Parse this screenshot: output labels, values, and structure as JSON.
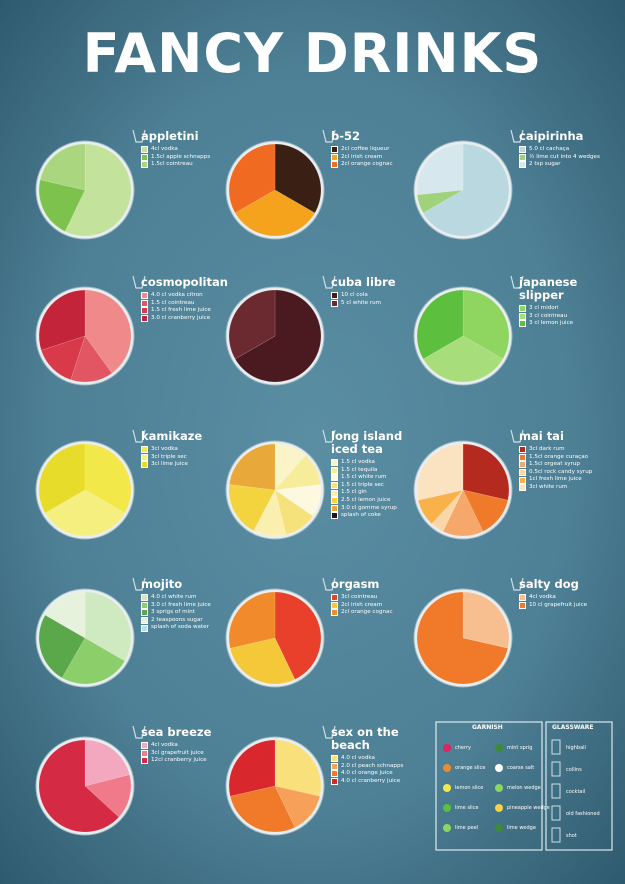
{
  "title": "FANCY DRINKS",
  "drinks": [
    {
      "name": "appletini",
      "ingredients": [
        {
          "text": "4cl vodka",
          "amount": 4,
          "color": "#c3e29c"
        },
        {
          "text": "1.5cl apple schnapps",
          "amount": 1.5,
          "color": "#7cc24d"
        },
        {
          "text": "1.5cl cointreau",
          "amount": 1.5,
          "color": "#a9d67e"
        }
      ]
    },
    {
      "name": "b-52",
      "ingredients": [
        {
          "text": "2cl coffee liqueur",
          "amount": 2,
          "color": "#3a1f14"
        },
        {
          "text": "2cl irish cream",
          "amount": 2,
          "color": "#f5a21c"
        },
        {
          "text": "2cl orange cognac",
          "amount": 2,
          "color": "#f06a22"
        }
      ]
    },
    {
      "name": "caipirinha",
      "ingredients": [
        {
          "text": "5.0 cl cachaça",
          "amount": 5,
          "color": "#b9d8e0"
        },
        {
          "text": "½ lime cut into 4 wedges",
          "amount": 0.5,
          "color": "#9fd27a"
        },
        {
          "text": "2 tsp sugar",
          "amount": 2,
          "color": "#d6e8ee"
        }
      ]
    },
    {
      "name": "cosmopolitan",
      "ingredients": [
        {
          "text": "4.0 cl vodka citron",
          "amount": 4,
          "color": "#f08a8a"
        },
        {
          "text": "1.5 cl cointreau",
          "amount": 1.5,
          "color": "#e25563"
        },
        {
          "text": "1.5 cl fresh lime juice",
          "amount": 1.5,
          "color": "#d93a4a"
        },
        {
          "text": "3.0 cl cranberry juice",
          "amount": 3,
          "color": "#c4243a"
        }
      ]
    },
    {
      "name": "cuba libre",
      "ingredients": [
        {
          "text": "10 cl cola",
          "amount": 10,
          "color": "#4a1a20"
        },
        {
          "text": "5 cl white rum",
          "amount": 5,
          "color": "#6a2a30"
        }
      ]
    },
    {
      "name": "japanese slipper",
      "ingredients": [
        {
          "text": "3 cl midori",
          "amount": 3,
          "color": "#8fd660"
        },
        {
          "text": "3 cl cointreau",
          "amount": 3,
          "color": "#a7dd7a"
        },
        {
          "text": "3 cl lemon juice",
          "amount": 3,
          "color": "#5cbf3d"
        }
      ]
    },
    {
      "name": "kamikaze",
      "ingredients": [
        {
          "text": "3cl vodka",
          "amount": 3,
          "color": "#f2e84a"
        },
        {
          "text": "3cl triple sec",
          "amount": 3,
          "color": "#f5ef80"
        },
        {
          "text": "3cl lime juice",
          "amount": 3,
          "color": "#e8dc2a"
        }
      ]
    },
    {
      "name": "long island iced tea",
      "ingredients": [
        {
          "text": "1.5 cl vodka",
          "amount": 1.5,
          "color": "#fbf4c8"
        },
        {
          "text": "1.5 cl tequila",
          "amount": 1.5,
          "color": "#f7ec9a"
        },
        {
          "text": "1.5 cl white rum",
          "amount": 1.5,
          "color": "#fdf8e0"
        },
        {
          "text": "1.5 cl triple sec",
          "amount": 1.5,
          "color": "#f6e27a"
        },
        {
          "text": "1.5 cl gin",
          "amount": 1.5,
          "color": "#fbefb0"
        },
        {
          "text": "2.5 cl lemon juice",
          "amount": 2.5,
          "color": "#f3d43e"
        },
        {
          "text": "3.0 cl gomme syrup",
          "amount": 3,
          "color": "#e8a83a"
        },
        {
          "text": "splash of coke",
          "color": "#2a1410"
        }
      ]
    },
    {
      "name": "mai tai",
      "ingredients": [
        {
          "text": "3cl dark rum",
          "amount": 3,
          "color": "#b52a1e"
        },
        {
          "text": "1.5cl orange curaçao",
          "amount": 1.5,
          "color": "#ef7a2a"
        },
        {
          "text": "1.5cl orgeat syrup",
          "amount": 1.5,
          "color": "#f6a86a"
        },
        {
          "text": "0.5cl rock candy syrup",
          "amount": 0.5,
          "color": "#fbd7a8"
        },
        {
          "text": "1cl fresh lime juice",
          "amount": 1,
          "color": "#f9b24a"
        },
        {
          "text": "3cl white rum",
          "amount": 3,
          "color": "#fbe2c0"
        }
      ]
    },
    {
      "name": "mojito",
      "ingredients": [
        {
          "text": "4.0 cl white rum",
          "amount": 4,
          "color": "#cfe9c0"
        },
        {
          "text": "3.0 cl fresh lime juice",
          "amount": 3,
          "color": "#8ccf6a"
        },
        {
          "text": "3 sprigs of mint",
          "amount": 3,
          "color": "#5aa84a"
        },
        {
          "text": "2 teaspoons sugar",
          "amount": 2,
          "color": "#e6f2dc"
        },
        {
          "text": "splash of soda water",
          "color": "#b9dde6"
        }
      ]
    },
    {
      "name": "orgasm",
      "ingredients": [
        {
          "text": "3cl cointreau",
          "amount": 3,
          "color": "#e8402a"
        },
        {
          "text": "2cl irish cream",
          "amount": 2,
          "color": "#f5c83a"
        },
        {
          "text": "2cl orange cognac",
          "amount": 2,
          "color": "#f08a2a"
        }
      ]
    },
    {
      "name": "salty dog",
      "ingredients": [
        {
          "text": "4cl vodka",
          "amount": 4,
          "color": "#f7be90"
        },
        {
          "text": "10 cl grapefruit juice",
          "amount": 10,
          "color": "#f07a2a"
        }
      ]
    },
    {
      "name": "sea breeze",
      "ingredients": [
        {
          "text": "4cl vodka",
          "amount": 4,
          "color": "#f4a8c0"
        },
        {
          "text": "3cl grapefruit juice",
          "amount": 3,
          "color": "#f07a8a"
        },
        {
          "text": "12cl cranberry juice",
          "amount": 12,
          "color": "#d42a44"
        }
      ]
    },
    {
      "name": "sex on the beach",
      "ingredients": [
        {
          "text": "4.0 cl vodka",
          "amount": 4,
          "color": "#f9e07a"
        },
        {
          "text": "2.0 cl peach schnapps",
          "amount": 2,
          "color": "#f6a05a"
        },
        {
          "text": "4.0 cl orange juice",
          "amount": 4,
          "color": "#f07a2a"
        },
        {
          "text": "4.0 cl cranberry juice",
          "amount": 4,
          "color": "#d8282e"
        }
      ]
    }
  ],
  "legend": {
    "garnish": {
      "title": "GARNISH",
      "items": [
        "cherry",
        "mint sprig",
        "orange slice",
        "coarse salt",
        "lemon slice",
        "melon wedge",
        "lime slice",
        "pineapple wedge",
        "lime peel",
        "lime wedge"
      ]
    },
    "glassware": {
      "title": "GLASSWARE",
      "items": [
        "highball",
        "collins",
        "cocktail",
        "old fashioned",
        "shot"
      ]
    }
  }
}
